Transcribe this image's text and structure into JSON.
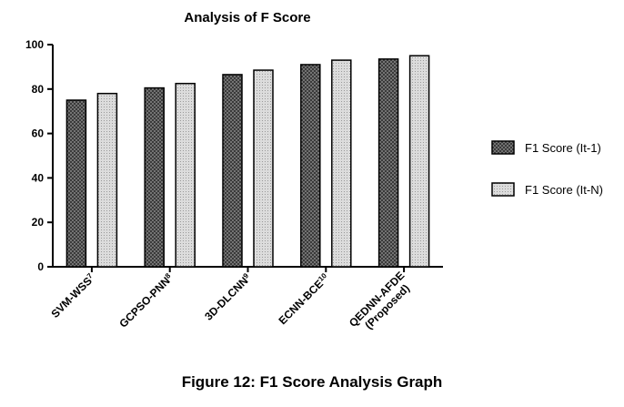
{
  "caption": "Figure 12: F1 Score Analysis Graph",
  "chart_data": {
    "type": "bar",
    "title": "Analysis of F Score",
    "xlabel": "",
    "ylabel": "",
    "ylim": [
      0,
      100
    ],
    "yticks": [
      0,
      20,
      40,
      60,
      80,
      100
    ],
    "grid": false,
    "legend_position": "right",
    "categories": [
      {
        "base": "SVM-WSS",
        "sup": "7"
      },
      {
        "base": "GCPSO-PNN",
        "sup": "8"
      },
      {
        "base": "3D-DLCNN",
        "sup": "9"
      },
      {
        "base": "ECNN-BCE",
        "sup": "10"
      },
      {
        "base": "QEDNN-AFDE",
        "line2": "(Proposed)"
      }
    ],
    "series": [
      {
        "name": "F1 Score (It-1)",
        "values": [
          75,
          80.5,
          86.5,
          91,
          93.5
        ],
        "color": "#555555",
        "pattern": "crosshatch"
      },
      {
        "name": "F1 Score (It-N)",
        "values": [
          78,
          82.5,
          88.5,
          93,
          95
        ],
        "color": "#d4d4d4",
        "pattern": "dots"
      }
    ]
  }
}
